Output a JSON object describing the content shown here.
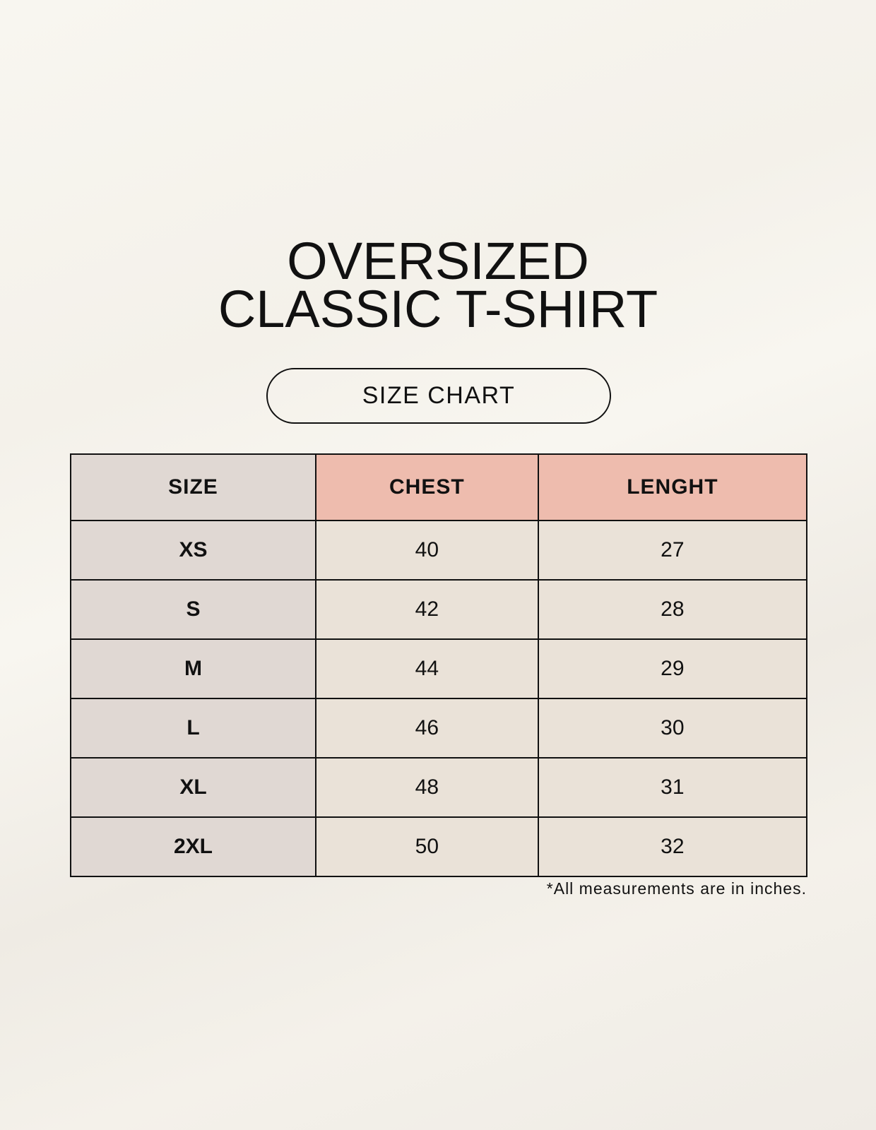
{
  "title": {
    "line1": "OVERSIZED",
    "line2": "CLASSIC T-SHIRT"
  },
  "badge": "SIZE CHART",
  "table": {
    "headers": [
      "SIZE",
      "CHEST",
      "LENGHT"
    ],
    "rows": [
      [
        "XS",
        "40",
        "27"
      ],
      [
        "S",
        "42",
        "28"
      ],
      [
        "M",
        "44",
        "29"
      ],
      [
        "L",
        "46",
        "30"
      ],
      [
        "XL",
        "48",
        "31"
      ],
      [
        "2XL",
        "50",
        "32"
      ]
    ]
  },
  "footnote": "*All measurements are in inches.",
  "colors": {
    "size_column": "#e0d8d3",
    "header_accent": "#eebcae",
    "cell": "#eae2d8"
  }
}
